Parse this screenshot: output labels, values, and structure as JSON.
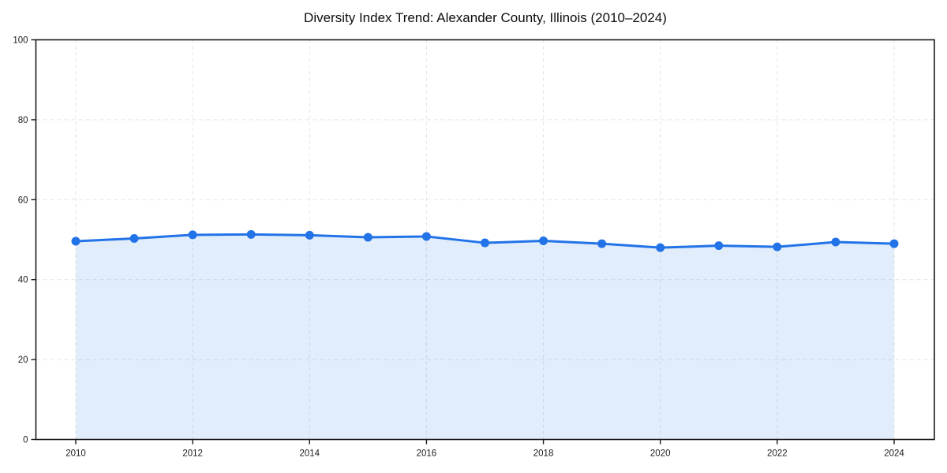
{
  "chart_data": {
    "type": "line",
    "title": "Diversity Index Trend: Alexander County, Illinois (2010–2024)",
    "x": [
      2010,
      2011,
      2012,
      2013,
      2014,
      2015,
      2016,
      2017,
      2018,
      2019,
      2020,
      2021,
      2022,
      2023,
      2024
    ],
    "series": [
      {
        "name": "Diversity Index",
        "values": [
          49.6,
          50.3,
          51.2,
          51.3,
          51.1,
          50.6,
          50.8,
          49.2,
          49.7,
          49.0,
          48.0,
          48.5,
          48.2,
          49.4,
          49.0
        ]
      }
    ],
    "xlabel": "",
    "ylabel": "",
    "ylim": [
      0,
      100
    ],
    "yticks": [
      0,
      20,
      40,
      60,
      80,
      100
    ],
    "ytick_labels": [
      "0",
      "20",
      "40",
      "60",
      "80",
      "100"
    ],
    "xticks": [
      2010,
      2012,
      2014,
      2016,
      2018,
      2020,
      2022,
      2024
    ],
    "xtick_labels": [
      "2010",
      "2012",
      "2014",
      "2016",
      "2018",
      "2020",
      "2022",
      "2024"
    ],
    "grid": true,
    "grid_style": "dashed",
    "legend": false,
    "marker": "circle",
    "colors": {
      "line": "#2273E8",
      "area_fill": "#2273E8",
      "area_opacity": "0.13",
      "grid": "#E3E3E3",
      "axis": "#1A1A1A",
      "tick_text": "#1A1A1A",
      "title_text": "#0D0D0D",
      "background": "#FFFFFF"
    }
  }
}
